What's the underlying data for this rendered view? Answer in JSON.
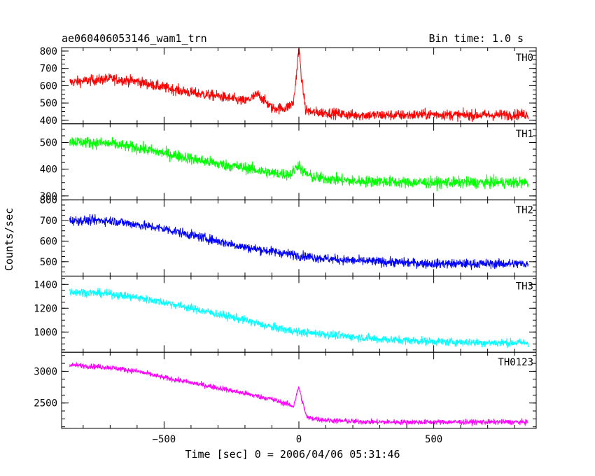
{
  "chart_data": {
    "type": "line",
    "title": "ae060406053146_wam1_trn",
    "subtitle": "Bin time: 1.0 s",
    "xlabel": "Time [sec] 0 = 2006/04/06 05:31:46",
    "ylabel": "Counts/sec",
    "xlim": [
      -880,
      880
    ],
    "x_ticks": [
      -500,
      0,
      500
    ],
    "x_tick_labels": [
      "−500",
      "0",
      "500"
    ],
    "panels": [
      {
        "name": "TH0",
        "color": "#ff0000",
        "ylim": [
          380,
          820
        ],
        "y_ticks": [
          400,
          500,
          600,
          700,
          800
        ],
        "y_tick_labels": [
          "400",
          "500",
          "600",
          "700",
          "800"
        ],
        "x": [
          -850,
          -700,
          -600,
          -500,
          -400,
          -300,
          -200,
          -150,
          -100,
          -50,
          -20,
          -10,
          0,
          10,
          25,
          50,
          100,
          200,
          300,
          400,
          500,
          600,
          700,
          850
        ],
        "y": [
          620,
          640,
          625,
          590,
          560,
          540,
          510,
          550,
          470,
          470,
          500,
          650,
          820,
          640,
          460,
          445,
          445,
          430,
          430,
          430,
          435,
          430,
          430,
          435
        ],
        "noise": 40
      },
      {
        "name": "TH1",
        "color": "#00ff00",
        "ylim": [
          285,
          570
        ],
        "y_ticks": [
          300,
          400,
          500
        ],
        "y_tick_labels": [
          "300",
          "400",
          "500"
        ],
        "x": [
          -850,
          -700,
          -600,
          -500,
          -400,
          -300,
          -200,
          -100,
          -30,
          0,
          10,
          50,
          100,
          200,
          300,
          400,
          500,
          600,
          700,
          850
        ],
        "y": [
          505,
          495,
          480,
          460,
          440,
          420,
          405,
          385,
          380,
          420,
          395,
          370,
          365,
          355,
          355,
          350,
          350,
          350,
          350,
          350
        ],
        "noise": 28
      },
      {
        "name": "TH2",
        "color": "#0000ff",
        "ylim": [
          430,
          800
        ],
        "y_ticks": [
          500,
          600,
          700,
          800
        ],
        "y_tick_labels": [
          "500",
          "600",
          "700",
          "800"
        ],
        "x": [
          -850,
          -700,
          -600,
          -500,
          -400,
          -300,
          -200,
          -100,
          0,
          100,
          200,
          300,
          400,
          500,
          600,
          700,
          850
        ],
        "y": [
          700,
          700,
          680,
          660,
          630,
          600,
          570,
          550,
          530,
          515,
          505,
          500,
          495,
          490,
          490,
          490,
          490
        ],
        "noise": 30
      },
      {
        "name": "TH3",
        "color": "#00ffff",
        "ylim": [
          830,
          1470
        ],
        "y_ticks": [
          1000,
          1200,
          1400
        ],
        "y_tick_labels": [
          "1000",
          "1200",
          "1400"
        ],
        "x": [
          -850,
          -700,
          -600,
          -500,
          -400,
          -300,
          -200,
          -100,
          0,
          100,
          200,
          300,
          400,
          500,
          600,
          700,
          850
        ],
        "y": [
          1340,
          1320,
          1290,
          1250,
          1200,
          1150,
          1100,
          1040,
          1000,
          980,
          960,
          940,
          930,
          920,
          915,
          910,
          910
        ],
        "noise": 45
      },
      {
        "name": "TH0123",
        "color": "#ff00ff",
        "ylim": [
          2100,
          3300
        ],
        "y_ticks": [
          2500,
          3000
        ],
        "y_tick_labels": [
          "2500",
          "3000"
        ],
        "x": [
          -850,
          -700,
          -600,
          -500,
          -400,
          -300,
          -200,
          -100,
          -20,
          0,
          10,
          30,
          100,
          200,
          300,
          400,
          500,
          600,
          700,
          850
        ],
        "y": [
          3100,
          3060,
          3000,
          2900,
          2820,
          2740,
          2650,
          2560,
          2450,
          2760,
          2560,
          2270,
          2230,
          2210,
          2200,
          2200,
          2200,
          2200,
          2200,
          2200
        ],
        "noise": 55
      }
    ]
  }
}
